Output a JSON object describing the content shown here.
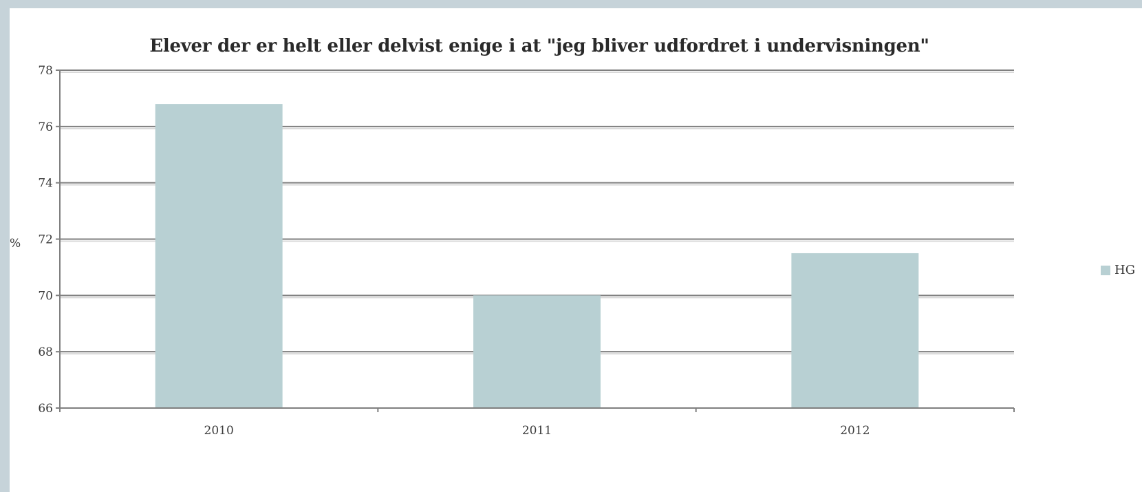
{
  "chart_data": {
    "type": "bar",
    "title": "Elever der er helt eller delvist enige i at \"jeg bliver udfordret i undervisningen\"",
    "xlabel": "",
    "ylabel": "%",
    "categories": [
      "2010",
      "2011",
      "2012"
    ],
    "series": [
      {
        "name": "HG",
        "values": [
          76.8,
          70.0,
          71.5
        ]
      }
    ],
    "ylim": [
      66,
      78
    ],
    "yticks": [
      66,
      68,
      70,
      72,
      74,
      76,
      78
    ],
    "grid": true,
    "legend_position": "right",
    "colors": {
      "bar": "#b8d0d3",
      "grid": "#7f7f7f",
      "axis": "#7f7f7f"
    }
  }
}
